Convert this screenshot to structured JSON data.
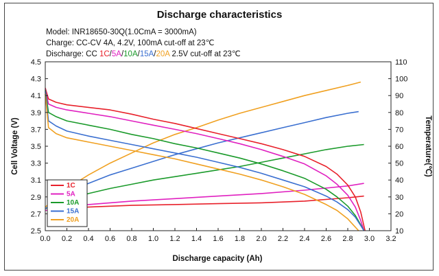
{
  "chart_data": {
    "type": "line",
    "title": "Discharge characteristics",
    "info": {
      "model": "Model: INR18650-30Q(1.0CmA = 3000mA)",
      "charge": "Charge: CC-CV 4A, 4.2V, 100mA cut-off at 23℃",
      "discharge_prefix": "Discharge: CC ",
      "discharge_rates": [
        {
          "text": "1C",
          "color": "#e8202a"
        },
        {
          "text": "/",
          "color": "#111111"
        },
        {
          "text": "5A",
          "color": "#e020c0"
        },
        {
          "text": "/",
          "color": "#111111"
        },
        {
          "text": "10A",
          "color": "#1a9a2a"
        },
        {
          "text": "/",
          "color": "#111111"
        },
        {
          "text": "15A",
          "color": "#3a6fd0"
        },
        {
          "text": "/",
          "color": "#111111"
        },
        {
          "text": "20A",
          "color": "#f0a020"
        }
      ],
      "discharge_suffix": " 2.5V cut-off at 23℃"
    },
    "xlabel": "Discharge capacity (Ah)",
    "ylabel_left": "Cell Voltage (V)",
    "ylabel_right": "Temperature(℃)",
    "xlim": [
      0.0,
      3.2
    ],
    "ylim_left": [
      2.5,
      4.5
    ],
    "ylim_right": [
      10,
      110
    ],
    "x_ticks": [
      "0.0",
      "0.2",
      "0.4",
      "0.6",
      "0.8",
      "1.0",
      "1.2",
      "1.4",
      "1.6",
      "1.8",
      "2.0",
      "2.2",
      "2.4",
      "2.6",
      "2.8",
      "3.0",
      "3.2"
    ],
    "y_left_ticks": [
      "2.5",
      "2.7",
      "2.9",
      "3.1",
      "3.3",
      "3.5",
      "3.7",
      "3.9",
      "4.1",
      "4.3",
      "4.5"
    ],
    "y_right_ticks": [
      "10",
      "20",
      "30",
      "40",
      "50",
      "60",
      "70",
      "80",
      "90",
      "100",
      "110"
    ],
    "grid": false,
    "legend_position": "bottom-left",
    "series": [
      {
        "name": "1C",
        "color": "#e8202a",
        "voltage": {
          "x": [
            0.0,
            0.03,
            0.1,
            0.2,
            0.4,
            0.6,
            0.8,
            1.0,
            1.2,
            1.4,
            1.6,
            1.8,
            2.0,
            2.2,
            2.4,
            2.6,
            2.7,
            2.8,
            2.87,
            2.92,
            2.96
          ],
          "y": [
            4.19,
            4.06,
            4.02,
            3.99,
            3.96,
            3.93,
            3.88,
            3.82,
            3.77,
            3.71,
            3.65,
            3.59,
            3.53,
            3.46,
            3.38,
            3.26,
            3.17,
            3.04,
            2.9,
            2.72,
            2.5
          ]
        },
        "temperature": {
          "x": [
            0.0,
            0.4,
            0.8,
            1.2,
            1.6,
            2.0,
            2.4,
            2.8,
            2.95
          ],
          "y": [
            22,
            24,
            25,
            25.5,
            26,
            26.5,
            27.5,
            29.5,
            30.5
          ]
        }
      },
      {
        "name": "5A",
        "color": "#e020c0",
        "voltage": {
          "x": [
            0.0,
            0.03,
            0.1,
            0.2,
            0.4,
            0.6,
            0.8,
            1.0,
            1.2,
            1.4,
            1.6,
            1.8,
            2.0,
            2.2,
            2.4,
            2.6,
            2.7,
            2.8,
            2.87,
            2.92,
            2.95
          ],
          "y": [
            4.18,
            4.0,
            3.96,
            3.93,
            3.89,
            3.85,
            3.8,
            3.75,
            3.7,
            3.65,
            3.59,
            3.53,
            3.46,
            3.38,
            3.29,
            3.15,
            3.05,
            2.92,
            2.78,
            2.62,
            2.5
          ]
        },
        "temperature": {
          "x": [
            0.0,
            0.4,
            0.8,
            1.2,
            1.6,
            2.0,
            2.4,
            2.8,
            2.95
          ],
          "y": [
            22,
            25.5,
            27.5,
            29,
            30.5,
            32,
            34,
            36.5,
            38
          ]
        }
      },
      {
        "name": "10A",
        "color": "#1a9a2a",
        "voltage": {
          "x": [
            0.0,
            0.03,
            0.1,
            0.2,
            0.4,
            0.6,
            0.8,
            1.0,
            1.2,
            1.4,
            1.6,
            1.8,
            2.0,
            2.2,
            2.4,
            2.6,
            2.7,
            2.8,
            2.87,
            2.92,
            2.95
          ],
          "y": [
            4.17,
            3.9,
            3.85,
            3.8,
            3.75,
            3.7,
            3.64,
            3.59,
            3.53,
            3.48,
            3.42,
            3.36,
            3.29,
            3.21,
            3.12,
            2.99,
            2.9,
            2.79,
            2.68,
            2.57,
            2.5
          ]
        },
        "temperature": {
          "x": [
            0.0,
            0.2,
            0.4,
            0.6,
            0.8,
            1.0,
            1.2,
            1.4,
            1.6,
            1.8,
            2.0,
            2.2,
            2.4,
            2.6,
            2.8,
            2.95
          ],
          "y": [
            23,
            28,
            32,
            35,
            37.5,
            40,
            42,
            44,
            46,
            48,
            50.5,
            53,
            55.5,
            58,
            60,
            61
          ]
        }
      },
      {
        "name": "15A",
        "color": "#3a6fd0",
        "voltage": {
          "x": [
            0.0,
            0.03,
            0.1,
            0.2,
            0.4,
            0.6,
            0.8,
            1.0,
            1.2,
            1.4,
            1.6,
            1.8,
            2.0,
            2.2,
            2.4,
            2.6,
            2.7,
            2.8,
            2.87,
            2.92,
            2.95
          ],
          "y": [
            4.15,
            3.8,
            3.74,
            3.68,
            3.62,
            3.57,
            3.52,
            3.47,
            3.42,
            3.37,
            3.31,
            3.25,
            3.18,
            3.1,
            3.02,
            2.91,
            2.84,
            2.75,
            2.66,
            2.56,
            2.5
          ]
        },
        "temperature": {
          "x": [
            0.0,
            0.2,
            0.4,
            0.6,
            0.8,
            1.0,
            1.2,
            1.4,
            1.6,
            1.8,
            2.0,
            2.2,
            2.4,
            2.6,
            2.8,
            2.9
          ],
          "y": [
            23,
            32,
            38,
            43,
            47,
            51,
            55,
            58.5,
            62,
            65,
            68,
            71,
            74,
            77,
            79.5,
            80.5
          ]
        }
      },
      {
        "name": "20A",
        "color": "#f0a020",
        "voltage": {
          "x": [
            0.0,
            0.03,
            0.1,
            0.2,
            0.4,
            0.6,
            0.8,
            1.0,
            1.2,
            1.4,
            1.6,
            1.8,
            2.0,
            2.2,
            2.4,
            2.6,
            2.7,
            2.8,
            2.85,
            2.9
          ],
          "y": [
            4.12,
            3.72,
            3.65,
            3.6,
            3.55,
            3.5,
            3.45,
            3.4,
            3.35,
            3.29,
            3.23,
            3.17,
            3.1,
            3.02,
            2.93,
            2.81,
            2.74,
            2.64,
            2.57,
            2.5
          ]
        },
        "temperature": {
          "x": [
            0.0,
            0.2,
            0.4,
            0.6,
            0.8,
            1.0,
            1.2,
            1.4,
            1.6,
            1.8,
            2.0,
            2.2,
            2.4,
            2.6,
            2.8,
            2.92
          ],
          "y": [
            24,
            35,
            43,
            50,
            56,
            62,
            67,
            71,
            75.5,
            79.5,
            83,
            86.5,
            90,
            93,
            96,
            98
          ]
        }
      }
    ]
  }
}
